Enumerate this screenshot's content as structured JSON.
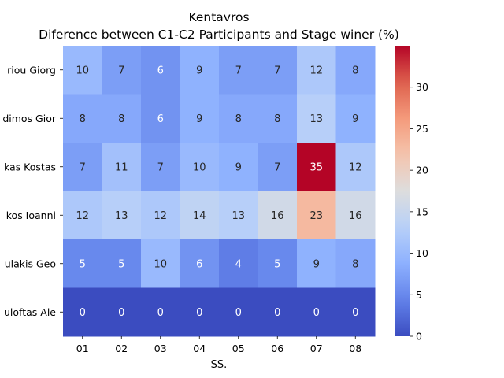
{
  "chart_data": {
    "type": "heatmap",
    "title": "Kentavros",
    "subtitle": "Diference between C1-C2 Participants and Stage winer (%)",
    "xlabel": "SS.",
    "ylabel": "",
    "x_categories": [
      "01",
      "02",
      "03",
      "04",
      "05",
      "06",
      "07",
      "08"
    ],
    "y_categories": [
      "riou Giorg",
      "dimos Gior",
      "kas Kostas",
      "kos Ioanni",
      "ulakis Geo",
      "uloftas Ale"
    ],
    "values": [
      [
        10,
        7,
        6,
        9,
        7,
        7,
        12,
        8
      ],
      [
        8,
        8,
        6,
        9,
        8,
        8,
        13,
        9
      ],
      [
        7,
        11,
        7,
        10,
        9,
        7,
        35,
        12
      ],
      [
        12,
        13,
        12,
        14,
        13,
        16,
        23,
        16
      ],
      [
        5,
        5,
        10,
        6,
        4,
        5,
        9,
        8
      ],
      [
        0,
        0,
        0,
        0,
        0,
        0,
        0,
        0
      ]
    ],
    "colormap": "coolwarm",
    "color_range": [
      0,
      35
    ],
    "colorbar_ticks": [
      "0",
      "5",
      "10",
      "15",
      "20",
      "25",
      "30"
    ],
    "colorbar_tick_values": [
      0,
      5,
      10,
      15,
      20,
      25,
      30
    ],
    "grid": false
  }
}
